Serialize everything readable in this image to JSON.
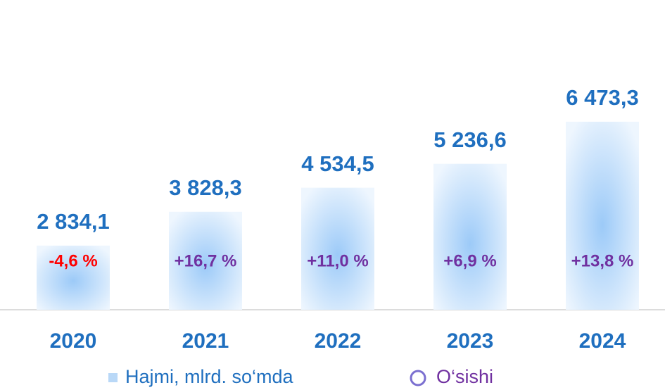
{
  "chart_data": {
    "type": "bar",
    "categories": [
      "2020",
      "2021",
      "2022",
      "2023",
      "2024"
    ],
    "series": [
      {
        "name": "Hajmi, mlrd. so‘mda",
        "color": "#8fc2f5",
        "values": [
          2834.1,
          3828.3,
          4534.5,
          5236.6,
          6473.3
        ],
        "value_labels": [
          "2 834,1",
          "3 828,3",
          "4 534,5",
          "5 236,6",
          "6 473,3"
        ]
      },
      {
        "name": "O‘sishi",
        "color": "#7030a0",
        "negative_color": "#ff0000",
        "values": [
          -4.6,
          16.7,
          11.0,
          6.9,
          13.8
        ],
        "value_labels": [
          "-4,6 %",
          "+16,7 %",
          "+11,0 %",
          "+6,9 %",
          "+13,8 %"
        ]
      }
    ],
    "ylim": [
      950,
      9200
    ]
  }
}
